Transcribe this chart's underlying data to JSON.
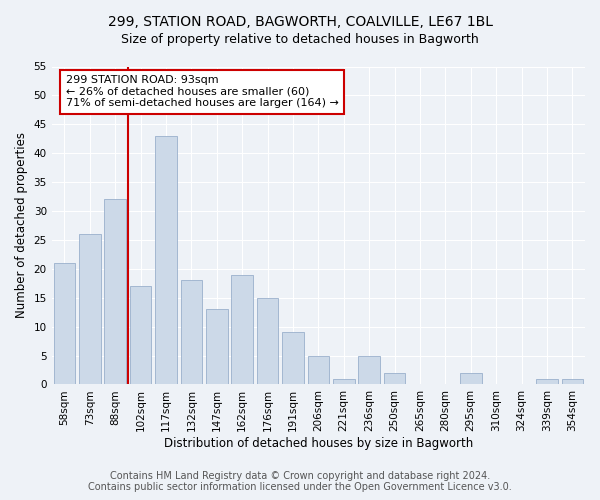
{
  "title_line1": "299, STATION ROAD, BAGWORTH, COALVILLE, LE67 1BL",
  "title_line2": "Size of property relative to detached houses in Bagworth",
  "xlabel": "Distribution of detached houses by size in Bagworth",
  "ylabel": "Number of detached properties",
  "categories": [
    "58sqm",
    "73sqm",
    "88sqm",
    "102sqm",
    "117sqm",
    "132sqm",
    "147sqm",
    "162sqm",
    "176sqm",
    "191sqm",
    "206sqm",
    "221sqm",
    "236sqm",
    "250sqm",
    "265sqm",
    "280sqm",
    "295sqm",
    "310sqm",
    "324sqm",
    "339sqm",
    "354sqm"
  ],
  "values": [
    21,
    26,
    32,
    17,
    43,
    18,
    13,
    19,
    15,
    9,
    5,
    1,
    5,
    2,
    0,
    0,
    2,
    0,
    0,
    1,
    1
  ],
  "bar_color": "#ccd9e8",
  "bar_edge_color": "#9ab0cc",
  "annotation_text": "299 STATION ROAD: 93sqm\n← 26% of detached houses are smaller (60)\n71% of semi-detached houses are larger (164) →",
  "annotation_box_color": "#ffffff",
  "annotation_box_edge_color": "#cc0000",
  "vline_color": "#cc0000",
  "ylim": [
    0,
    55
  ],
  "yticks": [
    0,
    5,
    10,
    15,
    20,
    25,
    30,
    35,
    40,
    45,
    50,
    55
  ],
  "footer_line1": "Contains HM Land Registry data © Crown copyright and database right 2024.",
  "footer_line2": "Contains public sector information licensed under the Open Government Licence v3.0.",
  "title_fontsize": 10,
  "subtitle_fontsize": 9,
  "axis_label_fontsize": 8.5,
  "tick_fontsize": 7.5,
  "annotation_fontsize": 8,
  "footer_fontsize": 7,
  "bg_color": "#eef2f7",
  "grid_color": "#ffffff"
}
